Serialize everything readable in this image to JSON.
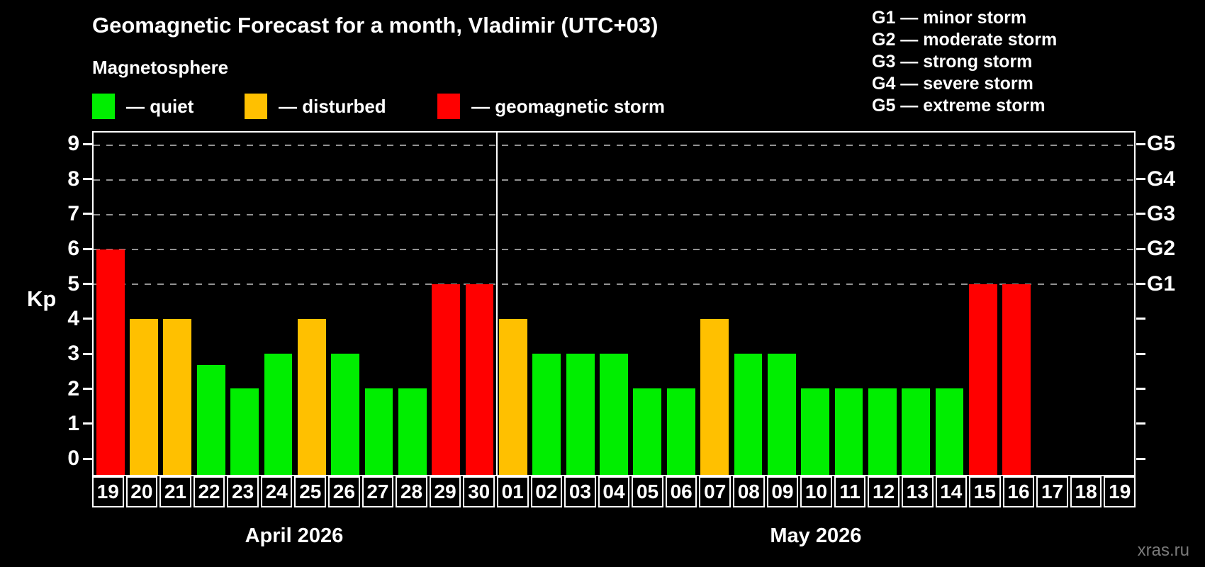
{
  "header": {
    "title": "Geomagnetic Forecast for a month, Vladimir (UTC+03)",
    "subtitle": "Magnetosphere"
  },
  "legend": {
    "items": [
      {
        "key": "quiet",
        "label": "— quiet"
      },
      {
        "key": "disturbed",
        "label": "— disturbed"
      },
      {
        "key": "storm",
        "label": "— geomagnetic storm"
      }
    ]
  },
  "storm_scale_legend": [
    "G1 — minor storm",
    "G2 — moderate storm",
    "G3 — strong storm",
    "G4 — severe storm",
    "G5 — extreme storm"
  ],
  "watermark": "xras.ru",
  "colors": {
    "quiet": "#00ee00",
    "disturbed": "#ffc000",
    "storm": "#ff0000",
    "grid": "#929292",
    "axis": "#ffffff",
    "watermark": "#7a7a7a"
  },
  "chart_data": {
    "type": "bar",
    "title": "Geomagnetic Forecast for a month, Vladimir (UTC+03)",
    "xlabel": "",
    "ylabel": "Kp",
    "ylim": [
      -0.5,
      9.37
    ],
    "yticks": [
      0,
      1,
      2,
      3,
      4,
      5,
      6,
      7,
      8,
      9
    ],
    "grid_levels": [
      5,
      6,
      7,
      8,
      9
    ],
    "grid_on": true,
    "right_axis_labels": [
      {
        "value": 9,
        "label": "G5"
      },
      {
        "value": 8,
        "label": "G4"
      },
      {
        "value": 7,
        "label": "G3"
      },
      {
        "value": 6,
        "label": "G2"
      },
      {
        "value": 5,
        "label": "G1"
      }
    ],
    "categories": [
      "19",
      "20",
      "21",
      "22",
      "23",
      "24",
      "25",
      "26",
      "27",
      "28",
      "29",
      "30",
      "01",
      "02",
      "03",
      "04",
      "05",
      "06",
      "07",
      "08",
      "09",
      "10",
      "11",
      "12",
      "13",
      "14",
      "15",
      "16",
      "17",
      "18",
      "19"
    ],
    "values": [
      6,
      4,
      4,
      2.67,
      2,
      3,
      4,
      3,
      2,
      2,
      5,
      5,
      4,
      3,
      3,
      3,
      2,
      2,
      4,
      3,
      3,
      2,
      2,
      2,
      2,
      2,
      5,
      5,
      null,
      null,
      null
    ],
    "statuses": [
      "storm",
      "disturbed",
      "disturbed",
      "quiet",
      "quiet",
      "quiet",
      "disturbed",
      "quiet",
      "quiet",
      "quiet",
      "storm",
      "storm",
      "disturbed",
      "quiet",
      "quiet",
      "quiet",
      "quiet",
      "quiet",
      "disturbed",
      "quiet",
      "quiet",
      "quiet",
      "quiet",
      "quiet",
      "quiet",
      "quiet",
      "storm",
      "storm",
      null,
      null,
      null
    ],
    "divider_index": 12,
    "months": [
      {
        "label": "April 2026",
        "start_index": 0,
        "end_index": 11
      },
      {
        "label": "May 2026",
        "start_index": 12,
        "end_index": 30
      }
    ]
  }
}
